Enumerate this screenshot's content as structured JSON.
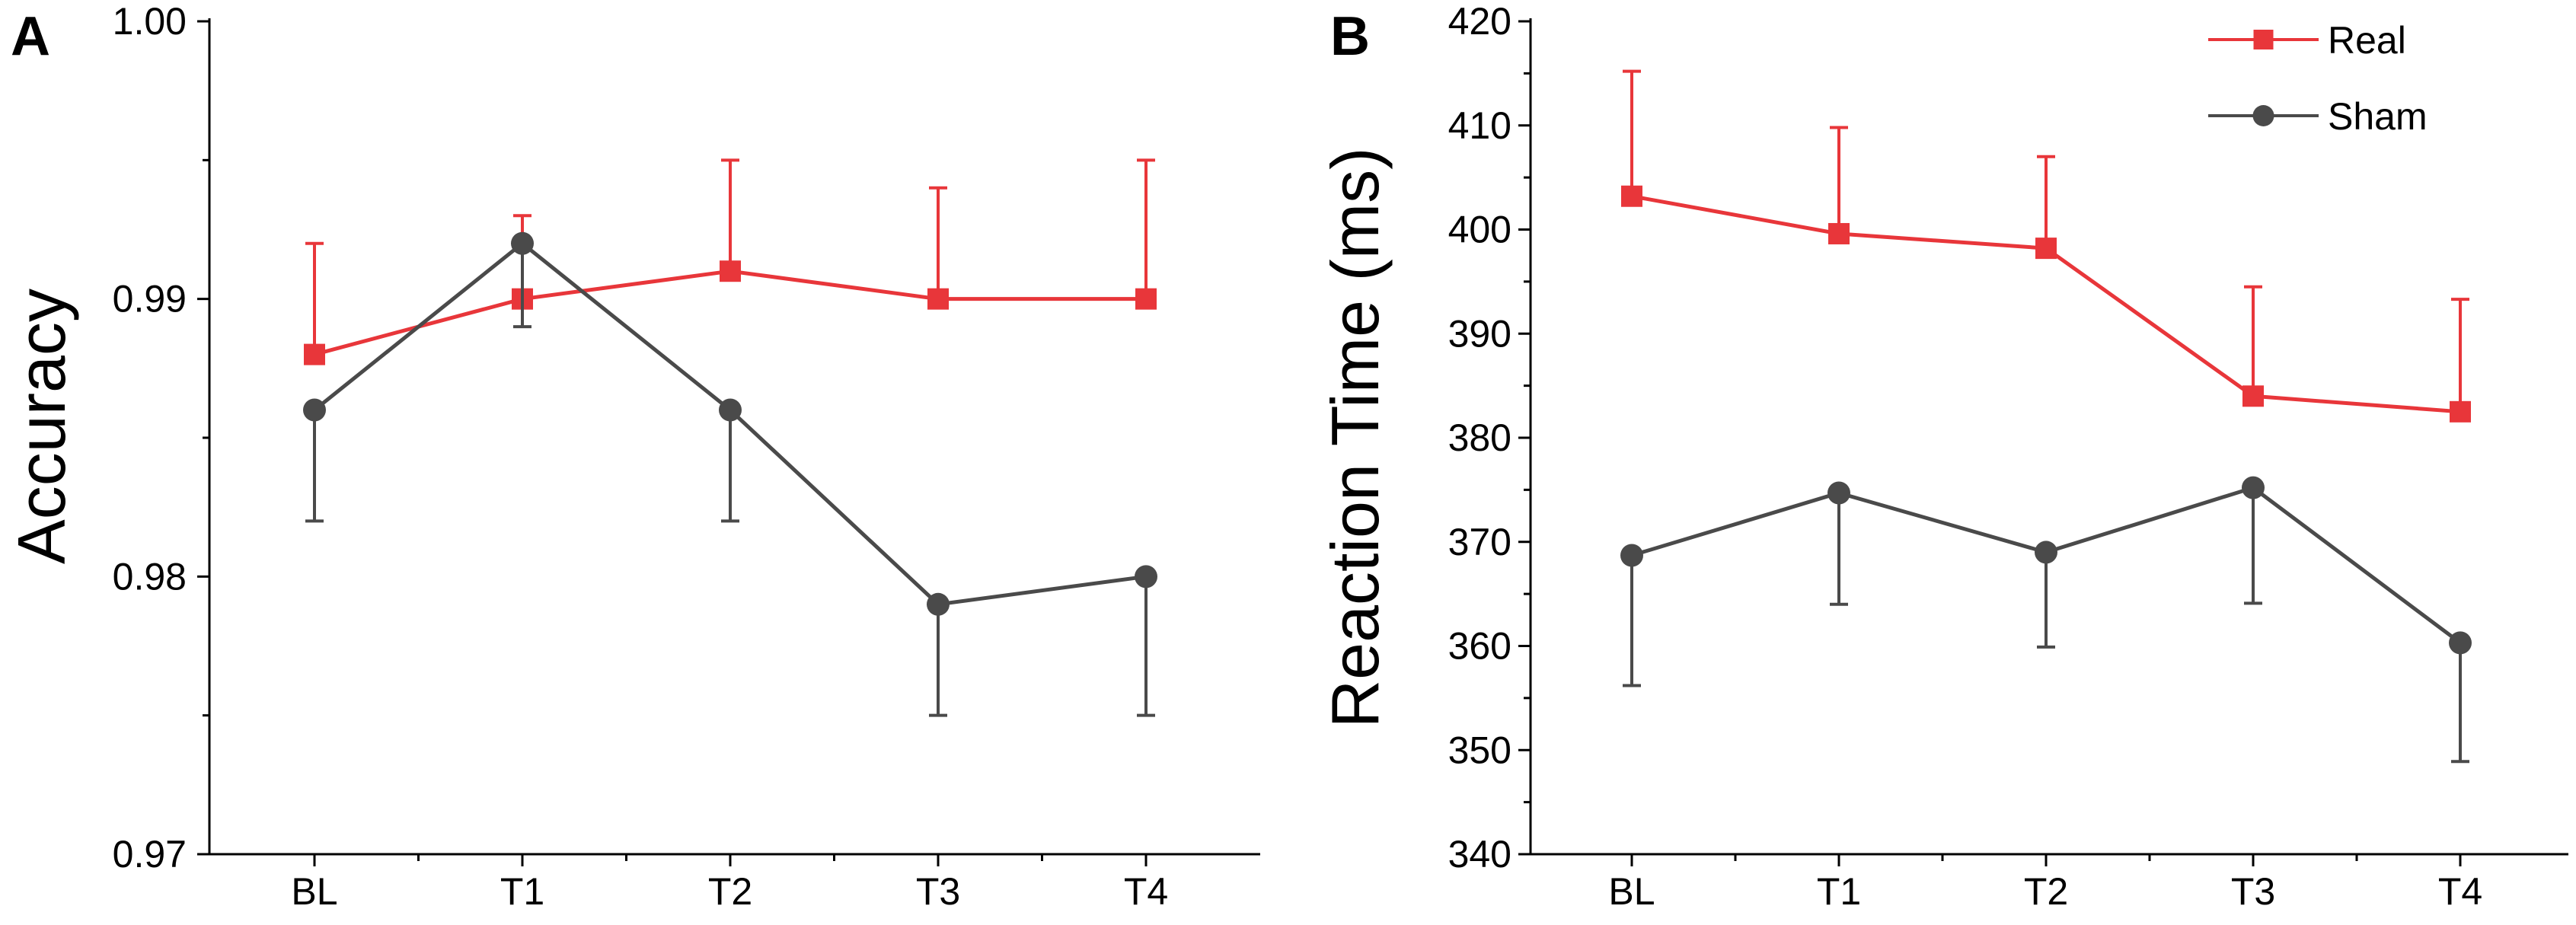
{
  "chart_data": [
    {
      "type": "line",
      "panel_label": "A",
      "title": "",
      "xlabel": "",
      "ylabel": "Accuracy",
      "categories": [
        "BL",
        "T1",
        "T2",
        "T3",
        "T4"
      ],
      "ylim": [
        0.97,
        1.0
      ],
      "yticks": [
        "0.97",
        "0.98",
        "0.99",
        "1.00"
      ],
      "error_bars": "one-sided (away from the other series)",
      "series": [
        {
          "name": "Real",
          "color": "#e8363a",
          "marker": "square",
          "values": [
            0.988,
            0.99,
            0.991,
            0.99,
            0.99
          ],
          "errors": [
            0.004,
            0.003,
            0.004,
            0.004,
            0.005
          ],
          "error_direction": "up"
        },
        {
          "name": "Sham",
          "color": "#4a4a4a",
          "marker": "circle",
          "values": [
            0.986,
            0.992,
            0.986,
            0.979,
            0.98
          ],
          "errors": [
            0.004,
            0.003,
            0.004,
            0.004,
            0.005
          ],
          "error_direction": "down"
        }
      ]
    },
    {
      "type": "line",
      "panel_label": "B",
      "title": "",
      "xlabel": "",
      "ylabel": "Reaction Time (ms)",
      "categories": [
        "BL",
        "T1",
        "T2",
        "T3",
        "T4"
      ],
      "ylim": [
        340,
        420
      ],
      "yticks": [
        "340",
        "350",
        "360",
        "370",
        "380",
        "390",
        "400",
        "410",
        "420"
      ],
      "legend": {
        "position": "top-right",
        "entries": [
          "Real",
          "Sham"
        ]
      },
      "series": [
        {
          "name": "Real",
          "color": "#e8363a",
          "marker": "square",
          "values": [
            403.2,
            399.6,
            398.2,
            384.0,
            382.5
          ],
          "errors": [
            12.0,
            10.2,
            8.8,
            10.5,
            10.8
          ],
          "error_direction": "up"
        },
        {
          "name": "Sham",
          "color": "#4a4a4a",
          "marker": "circle",
          "values": [
            368.7,
            374.7,
            369.0,
            375.2,
            360.3
          ],
          "errors": [
            12.5,
            10.7,
            9.1,
            11.1,
            11.4
          ],
          "error_direction": "down"
        }
      ]
    }
  ]
}
